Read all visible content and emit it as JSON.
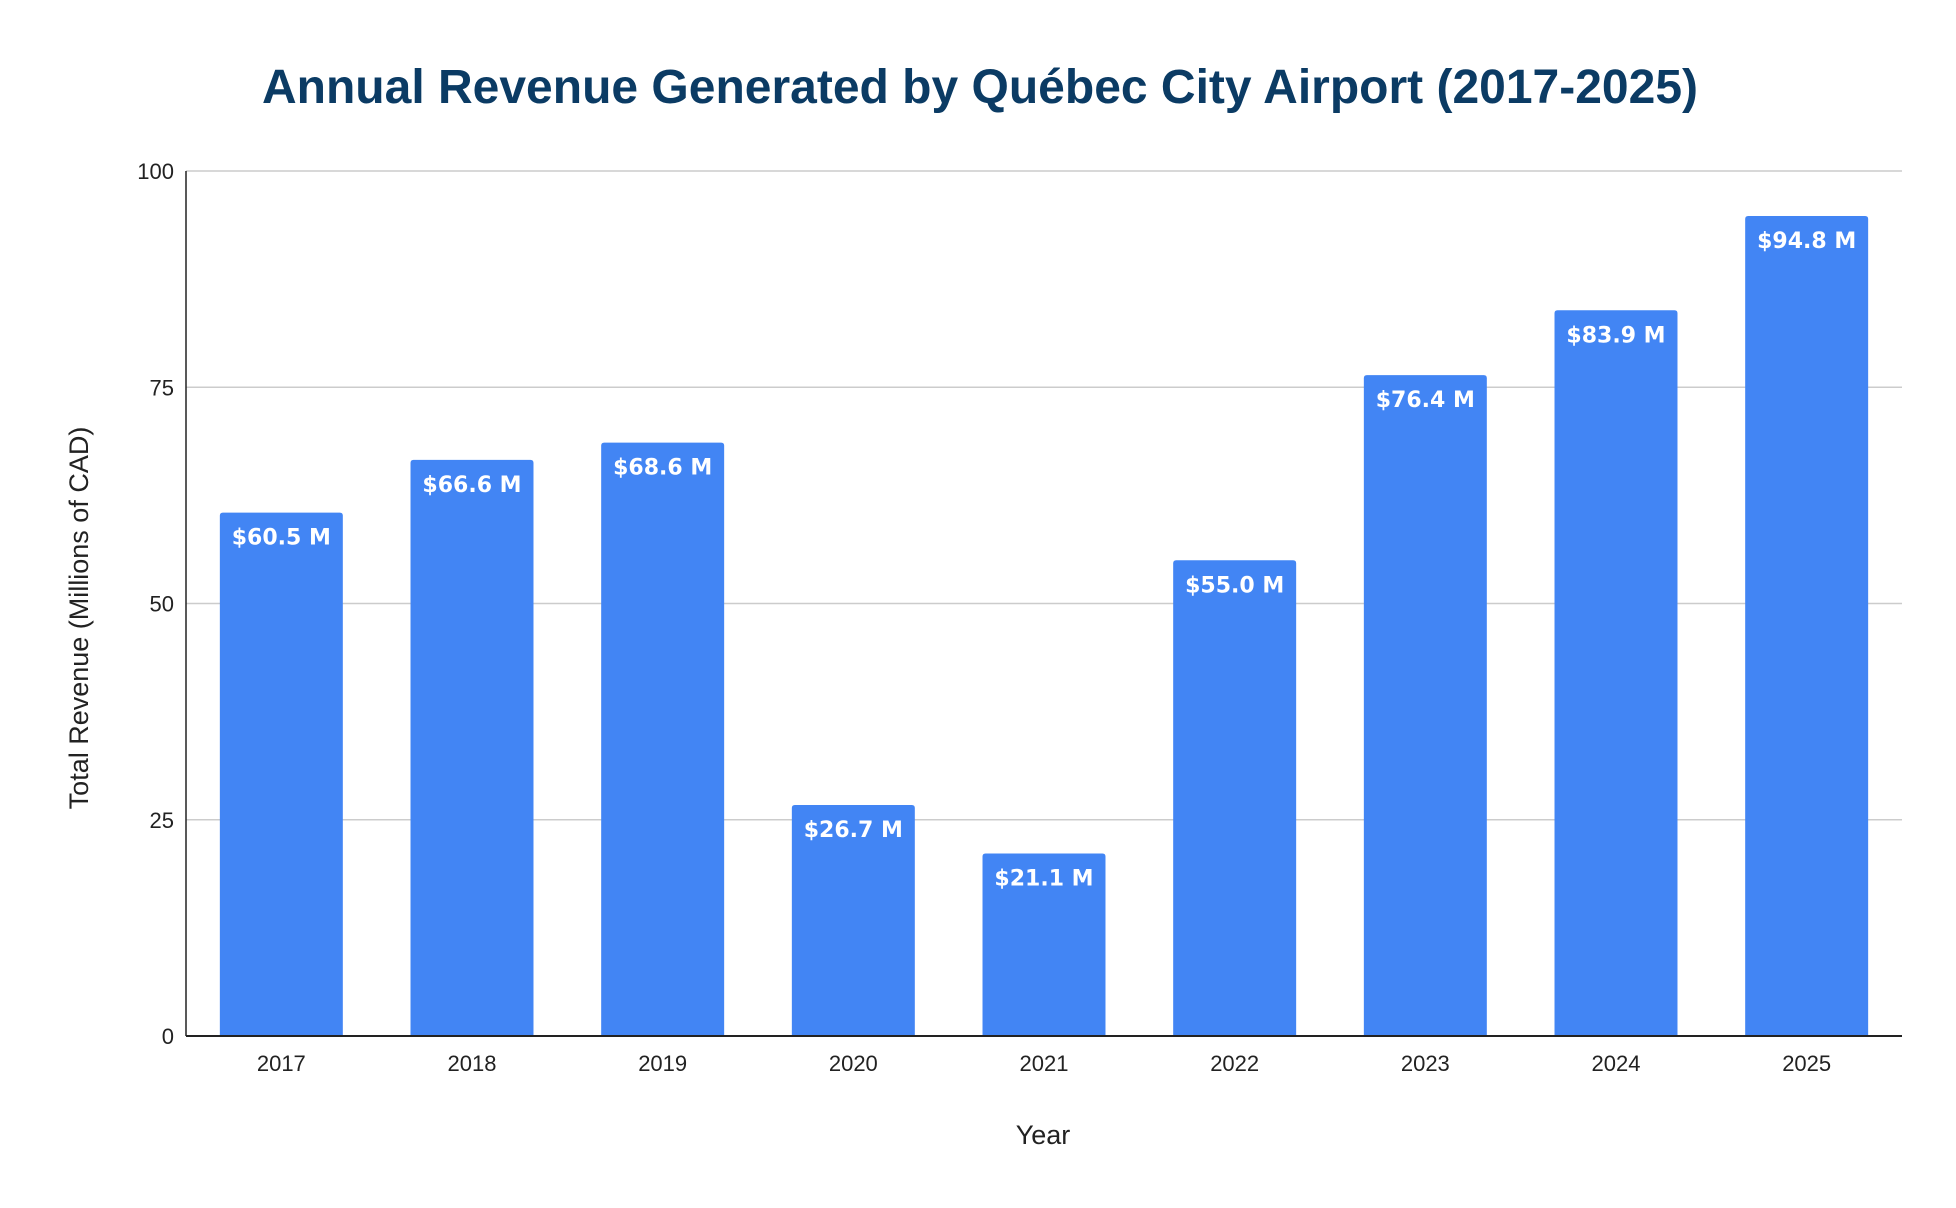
{
  "chart_data": {
    "type": "bar",
    "title": "Annual Revenue Generated by Québec City Airport (2017-2025)",
    "xlabel": "Year",
    "ylabel": "Total Revenue (Millions of CAD)",
    "categories": [
      "2017",
      "2018",
      "2019",
      "2020",
      "2021",
      "2022",
      "2023",
      "2024",
      "2025"
    ],
    "values": [
      60.5,
      66.6,
      68.6,
      26.7,
      21.1,
      55.0,
      76.4,
      83.9,
      94.8
    ],
    "data_labels": [
      "$60.5 M",
      "$66.6 M",
      "$68.6 M",
      "$26.7 M",
      "$21.1 M",
      "$55.0 M",
      "$76.4 M",
      "$83.9 M",
      "$94.8 M"
    ],
    "ylim": [
      0,
      100
    ],
    "yticks": [
      0,
      25,
      50,
      75,
      100
    ],
    "grid": true,
    "legend": "none",
    "colors": {
      "bar": "#4285f4",
      "title": "#0b3b64",
      "grid": "#cccccc",
      "axis": "#222222",
      "bar_label": "#ffffff"
    }
  }
}
